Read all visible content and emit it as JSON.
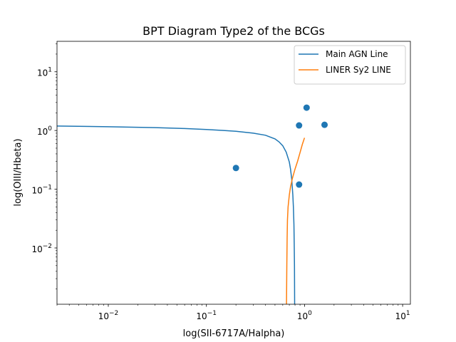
{
  "chart_data": {
    "type": "scatter",
    "title": "BPT Diagram Type2 of the BCGs",
    "xlabel": "log(SII-6717A/Halpha)",
    "ylabel": "log(OIII/Hbeta)",
    "xscale": "log",
    "yscale": "log",
    "xlim": [
      0.003,
      12
    ],
    "ylim": [
      0.0011,
      33
    ],
    "grid": false,
    "legend_position": "top-right",
    "x_ticks": [
      {
        "value": 0.01,
        "label": "10",
        "exp": "−2"
      },
      {
        "value": 0.1,
        "label": "10",
        "exp": "−1"
      },
      {
        "value": 1,
        "label": "10",
        "exp": "0"
      },
      {
        "value": 10,
        "label": "10",
        "exp": "1"
      }
    ],
    "y_ticks": [
      {
        "value": 0.01,
        "label": "10",
        "exp": "−2"
      },
      {
        "value": 0.1,
        "label": "10",
        "exp": "−1"
      },
      {
        "value": 1,
        "label": "10",
        "exp": "0"
      },
      {
        "value": 10,
        "label": "10",
        "exp": "1"
      }
    ],
    "series": [
      {
        "name": "Main AGN Line",
        "kind": "line",
        "color": "#1f77b4",
        "points": [
          [
            0.003,
            1.19
          ],
          [
            0.01,
            1.16
          ],
          [
            0.03,
            1.12
          ],
          [
            0.06,
            1.08
          ],
          [
            0.1,
            1.04
          ],
          [
            0.15,
            1.0
          ],
          [
            0.2,
            0.97
          ],
          [
            0.3,
            0.9
          ],
          [
            0.4,
            0.83
          ],
          [
            0.5,
            0.72
          ],
          [
            0.55,
            0.64
          ],
          [
            0.6,
            0.55
          ],
          [
            0.65,
            0.43
          ],
          [
            0.7,
            0.29
          ],
          [
            0.72,
            0.22
          ],
          [
            0.74,
            0.15
          ],
          [
            0.76,
            0.08
          ],
          [
            0.77,
            0.05
          ],
          [
            0.78,
            0.025
          ],
          [
            0.785,
            0.012
          ],
          [
            0.79,
            0.005
          ],
          [
            0.793,
            0.0011
          ]
        ]
      },
      {
        "name": "LINER Sy2 LINE",
        "kind": "line",
        "color": "#ff7f0e",
        "points": [
          [
            0.655,
            0.0011
          ],
          [
            0.66,
            0.005
          ],
          [
            0.665,
            0.015
          ],
          [
            0.67,
            0.03
          ],
          [
            0.68,
            0.05
          ],
          [
            0.7,
            0.08
          ],
          [
            0.72,
            0.11
          ],
          [
            0.75,
            0.15
          ],
          [
            0.8,
            0.22
          ],
          [
            0.85,
            0.3
          ],
          [
            0.9,
            0.42
          ],
          [
            0.95,
            0.58
          ],
          [
            1.0,
            0.75
          ]
        ]
      },
      {
        "name": "",
        "kind": "scatter",
        "color": "#1f77b4",
        "points": [
          [
            0.2,
            0.23
          ],
          [
            0.88,
            1.22
          ],
          [
            1.05,
            2.45
          ],
          [
            1.6,
            1.25
          ],
          [
            0.88,
            0.12
          ]
        ]
      }
    ]
  }
}
